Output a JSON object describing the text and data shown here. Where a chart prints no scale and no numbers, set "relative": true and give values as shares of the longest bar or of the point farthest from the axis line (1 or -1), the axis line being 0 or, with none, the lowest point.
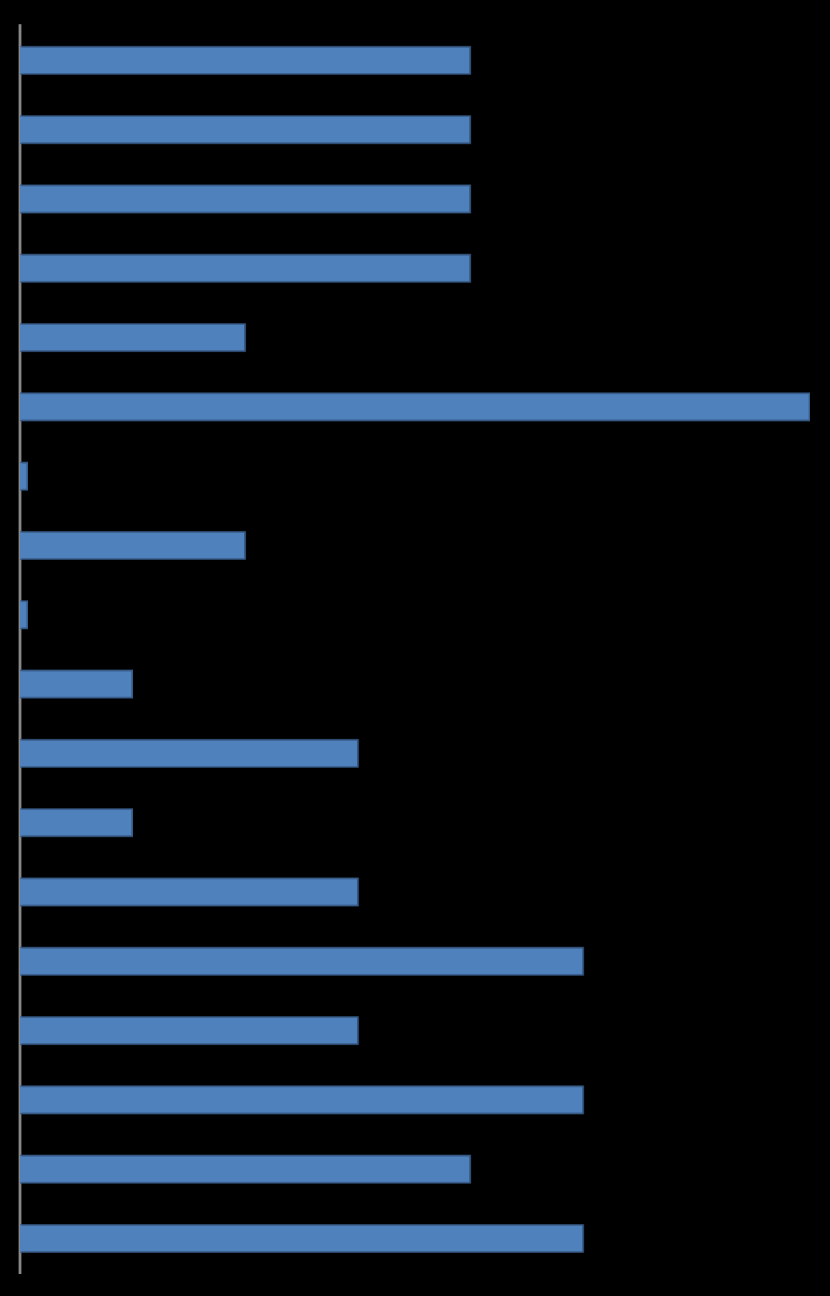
{
  "chart_data": {
    "type": "bar",
    "orientation": "horizontal",
    "relative": true,
    "categories": [
      null,
      null,
      null,
      null,
      null,
      null,
      null,
      null,
      null,
      null,
      null,
      null,
      null,
      null,
      null,
      null,
      null,
      null
    ],
    "values": [
      0.571,
      0.571,
      0.571,
      0.571,
      0.286,
      1,
      0.01,
      0.286,
      0.01,
      0.143,
      0.429,
      0.143,
      0.429,
      0.714,
      0.429,
      0.714,
      0.571,
      0.714
    ],
    "color": "#4f81bd",
    "grid": false,
    "legend": false
  }
}
